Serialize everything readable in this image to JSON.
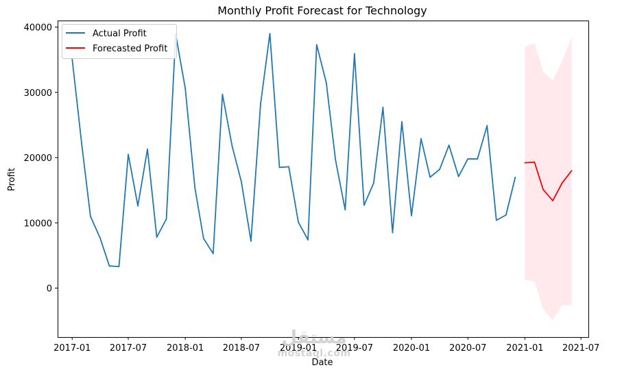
{
  "chart_data": {
    "type": "line",
    "title": "Monthly Profit Forecast for Technology",
    "xlabel": "Date",
    "ylabel": "Profit",
    "xlim": [
      "2016-11-15",
      "2021-07-25"
    ],
    "ylim": [
      -7500,
      41000
    ],
    "x_ticks": [
      "2017-01",
      "2017-07",
      "2018-01",
      "2018-07",
      "2019-01",
      "2019-07",
      "2020-01",
      "2020-07",
      "2021-01",
      "2021-07"
    ],
    "y_ticks": [
      0,
      10000,
      20000,
      30000,
      40000
    ],
    "legend": {
      "position": "top-left",
      "entries": [
        "Actual Profit",
        "Forecasted Profit"
      ]
    },
    "colors": {
      "actual": "#1f77b4",
      "forecast": "#ff0000",
      "confidence": "#ffb6c1"
    },
    "series": [
      {
        "name": "Actual Profit",
        "x": [
          "2017-01",
          "2017-02",
          "2017-03",
          "2017-04",
          "2017-05",
          "2017-06",
          "2017-07",
          "2017-08",
          "2017-09",
          "2017-10",
          "2017-11",
          "2017-12",
          "2018-01",
          "2018-02",
          "2018-03",
          "2018-04",
          "2018-05",
          "2018-06",
          "2018-07",
          "2018-08",
          "2018-09",
          "2018-10",
          "2018-11",
          "2018-12",
          "2019-01",
          "2019-02",
          "2019-03",
          "2019-04",
          "2019-05",
          "2019-06",
          "2019-07",
          "2019-08",
          "2019-09",
          "2019-10",
          "2019-11",
          "2019-12",
          "2020-01",
          "2020-02",
          "2020-03",
          "2020-04",
          "2020-05",
          "2020-06",
          "2020-07",
          "2020-08",
          "2020-09",
          "2020-10",
          "2020-11",
          "2020-12"
        ],
        "values": [
          35100,
          22000,
          11000,
          7700,
          3400,
          3300,
          20500,
          12600,
          21300,
          7800,
          10600,
          38900,
          30600,
          15400,
          7600,
          5300,
          29700,
          21800,
          16300,
          7200,
          28200,
          39000,
          18500,
          18600,
          10100,
          7400,
          37300,
          31500,
          19600,
          12000,
          35900,
          12700,
          16100,
          27700,
          8500,
          25500,
          11100,
          22900,
          17000,
          18200,
          21900,
          17100,
          19800,
          19800,
          24900,
          10400,
          11200,
          17000
        ]
      },
      {
        "name": "Forecasted Profit",
        "x": [
          "2021-01",
          "2021-02",
          "2021-03",
          "2021-04",
          "2021-05",
          "2021-06"
        ],
        "values": [
          19200,
          19300,
          15100,
          13400,
          16100,
          18000
        ],
        "lower": [
          1300,
          1000,
          -3200,
          -4900,
          -2600,
          -2600
        ],
        "upper": [
          37000,
          37500,
          33200,
          31800,
          34800,
          38400
        ]
      }
    ],
    "watermark": {
      "arabic": "مستقل",
      "latin": "mostaql.com"
    }
  }
}
